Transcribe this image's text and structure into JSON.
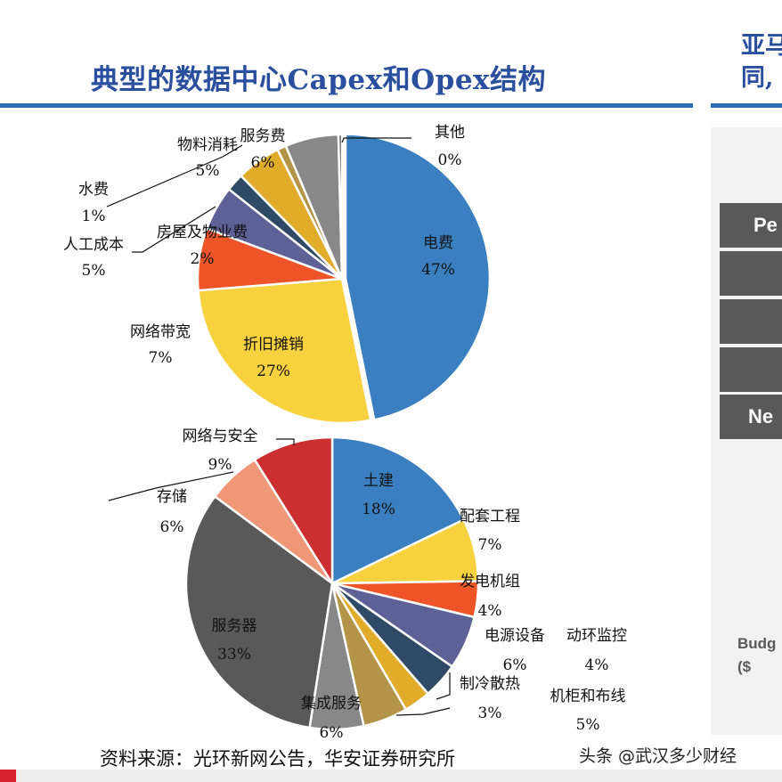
{
  "header": {
    "title": "典型的数据中心Capex和Opex结构",
    "right_title": "亚马\n同,"
  },
  "right_panel": {
    "header_text": "Pe",
    "last_row_text": "Ne",
    "budget_text": "Budg\n($"
  },
  "source": "资料来源：光环新网公告，华安证券研究所",
  "watermark": "头条 @武汉多少财经",
  "colors": {
    "accent": "#2a4f9e",
    "rule": "#2e6cb5"
  },
  "chart_data": [
    {
      "type": "pie",
      "name": "Opex",
      "start_angle_deg": 0,
      "direction": "clockwise",
      "slices": [
        {
          "label": "电费",
          "pct_label": "47%",
          "value": 47,
          "color": "#3a7fc0"
        },
        {
          "label": "折旧摊销",
          "pct_label": "27%",
          "value": 27,
          "color": "#f8d13e"
        },
        {
          "label": "网络带宽",
          "pct_label": "7%",
          "value": 7,
          "color": "#ee5427"
        },
        {
          "label": "人工成本",
          "pct_label": "5%",
          "value": 5,
          "color": "#5d6196"
        },
        {
          "label": "房屋及物业费",
          "pct_label": "2%",
          "value": 2,
          "color": "#2e4a66"
        },
        {
          "label": "物料消耗",
          "pct_label": "5%",
          "value": 5,
          "color": "#e0ac2a"
        },
        {
          "label": "水费",
          "pct_label": "1%",
          "value": 1,
          "color": "#b39449"
        },
        {
          "label": "服务费",
          "pct_label": "6%",
          "value": 6,
          "color": "#888888"
        },
        {
          "label": "其他",
          "pct_label": "0%",
          "value": 0.4,
          "color": "#5a5a5a"
        }
      ]
    },
    {
      "type": "pie",
      "name": "Capex",
      "start_angle_deg": 0,
      "direction": "clockwise",
      "slices": [
        {
          "label": "土建",
          "pct_label": "18%",
          "value": 18,
          "color": "#3a7fc0"
        },
        {
          "label": "配套工程",
          "pct_label": "7%",
          "value": 7,
          "color": "#f8d13e"
        },
        {
          "label": "发电机组",
          "pct_label": "4%",
          "value": 4,
          "color": "#ee5427"
        },
        {
          "label": "电源设备",
          "pct_label": "6%",
          "value": 6,
          "color": "#5d6196"
        },
        {
          "label": "动环监控",
          "pct_label": "4%",
          "value": 4,
          "color": "#2e4a66"
        },
        {
          "label": "制冷散热",
          "pct_label": "3%",
          "value": 3,
          "color": "#e0ac2a"
        },
        {
          "label": "机柜和布线",
          "pct_label": "5%",
          "value": 5,
          "color": "#b39449"
        },
        {
          "label": "集成服务",
          "pct_label": "6%",
          "value": 6,
          "color": "#888888"
        },
        {
          "label": "服务器",
          "pct_label": "33%",
          "value": 33,
          "color": "#595959"
        },
        {
          "label": "存储",
          "pct_label": "6%",
          "value": 6,
          "color": "#f09778"
        },
        {
          "label": "网络与安全",
          "pct_label": "9%",
          "value": 9,
          "color": "#cc2f2f"
        }
      ]
    }
  ]
}
